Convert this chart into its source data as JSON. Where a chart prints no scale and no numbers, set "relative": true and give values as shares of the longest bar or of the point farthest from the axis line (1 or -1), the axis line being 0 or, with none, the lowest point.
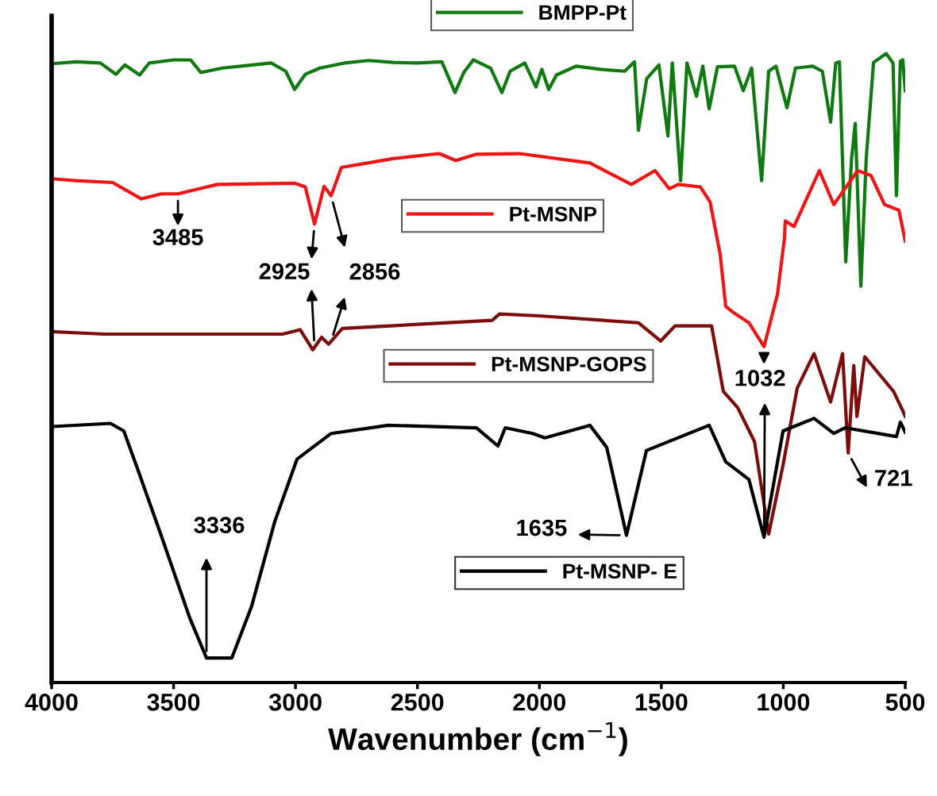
{
  "chart_data": {
    "type": "line",
    "relative": true,
    "xlabel": "Wavenumber (cm$^{−1}$)",
    "xlim": [
      4000,
      500
    ],
    "xticks": [
      4000,
      3500,
      3000,
      2500,
      2000,
      1500,
      1000,
      500
    ],
    "tick_labels": "x",
    "legend": "top",
    "marker": "none",
    "line_style": "solid",
    "grid": false,
    "series": [
      {
        "name": "BMPP-Pt",
        "color": "#0f7a0f",
        "x": [
          4000,
          3900,
          3800,
          3736,
          3700,
          3639,
          3600,
          3500,
          3430,
          3388,
          3300,
          3200,
          3100,
          3040,
          3004,
          2960,
          2900,
          2800,
          2700,
          2600,
          2500,
          2400,
          2346,
          2310,
          2271,
          2200,
          2154,
          2120,
          2060,
          2014,
          1990,
          1962,
          1930,
          1850,
          1750,
          1650,
          1610,
          1594,
          1560,
          1510,
          1473,
          1455,
          1421,
          1395,
          1356,
          1330,
          1304,
          1270,
          1200,
          1164,
          1130,
          1089,
          1060,
          1030,
          985,
          950,
          880,
          840,
          806,
          785,
          770,
          744,
          720,
          705,
          682,
          660,
          630,
          578,
          550,
          536,
          520,
          510,
          500
        ],
        "values": [
          0.984,
          0.987,
          0.985,
          0.967,
          0.982,
          0.966,
          0.985,
          0.99,
          0.99,
          0.97,
          0.977,
          0.981,
          0.985,
          0.972,
          0.943,
          0.967,
          0.977,
          0.985,
          0.989,
          0.986,
          0.985,
          0.987,
          0.938,
          0.97,
          0.99,
          0.977,
          0.938,
          0.972,
          0.985,
          0.947,
          0.975,
          0.943,
          0.966,
          0.98,
          0.975,
          0.972,
          0.987,
          0.878,
          0.96,
          0.982,
          0.869,
          0.985,
          0.798,
          0.985,
          0.932,
          0.98,
          0.912,
          0.979,
          0.98,
          0.941,
          0.977,
          0.798,
          0.972,
          0.98,
          0.914,
          0.977,
          0.98,
          0.972,
          0.891,
          0.985,
          0.987,
          0.669,
          0.833,
          0.889,
          0.63,
          0.833,
          0.986,
          1.0,
          0.985,
          0.774,
          0.988,
          0.99,
          0.941
        ]
      },
      {
        "name": "Pt-MSNP",
        "color": "#f01414",
        "x": [
          4000,
          3900,
          3750,
          3632,
          3550,
          3482,
          3320,
          3004,
          2960,
          2922,
          2883,
          2854,
          2812,
          2600,
          2411,
          2343,
          2258,
          2082,
          1793,
          1623,
          1526,
          1467,
          1431,
          1340,
          1300,
          1259,
          1236,
          1200,
          1141,
          1079,
          1024,
          995,
          992,
          956,
          852,
          793,
          695,
          640,
          585,
          526,
          500
        ],
        "values": [
          0.801,
          0.798,
          0.795,
          0.769,
          0.777,
          0.777,
          0.792,
          0.794,
          0.788,
          0.729,
          0.789,
          0.774,
          0.819,
          0.833,
          0.841,
          0.83,
          0.84,
          0.841,
          0.826,
          0.792,
          0.814,
          0.785,
          0.792,
          0.788,
          0.764,
          0.681,
          0.598,
          0.587,
          0.572,
          0.534,
          0.617,
          0.707,
          0.734,
          0.725,
          0.814,
          0.76,
          0.814,
          0.806,
          0.76,
          0.751,
          0.702
        ]
      },
      {
        "name": "Pt-MSNP-GOPS",
        "color": "#7d0c0c",
        "x": [
          4000,
          3785,
          3053,
          2981,
          2929,
          2893,
          2864,
          2808,
          2193,
          2164,
          2001,
          1594,
          1503,
          1444,
          1294,
          1246,
          1187,
          1118,
          1060,
          1001,
          943,
          874,
          806,
          757,
          734,
          711,
          698,
          666,
          548,
          510,
          500
        ],
        "values": [
          0.558,
          0.554,
          0.554,
          0.561,
          0.529,
          0.549,
          0.538,
          0.563,
          0.576,
          0.586,
          0.583,
          0.572,
          0.543,
          0.567,
          0.567,
          0.463,
          0.437,
          0.383,
          0.236,
          0.346,
          0.468,
          0.523,
          0.446,
          0.523,
          0.365,
          0.504,
          0.423,
          0.518,
          0.463,
          0.432,
          0.423
        ]
      },
      {
        "name": "Pt-MSNP- E",
        "color": "#000000",
        "x": [
          4000,
          3759,
          3704,
          3645,
          3551,
          3433,
          3365,
          3261,
          3180,
          3085,
          2994,
          2854,
          2620,
          2258,
          2170,
          2140,
          2027,
          1978,
          1793,
          1724,
          1643,
          1561,
          1304,
          1236,
          1141,
          1079,
          1001,
          874,
          793,
          747,
          536,
          520,
          500
        ],
        "values": [
          0.407,
          0.412,
          0.4,
          0.337,
          0.234,
          0.102,
          0.039,
          0.039,
          0.121,
          0.256,
          0.355,
          0.396,
          0.409,
          0.405,
          0.376,
          0.405,
          0.396,
          0.389,
          0.409,
          0.374,
          0.234,
          0.369,
          0.409,
          0.351,
          0.323,
          0.231,
          0.4,
          0.42,
          0.396,
          0.405,
          0.391,
          0.414,
          0.398
        ]
      }
    ],
    "annotations": [
      {
        "text": "3485",
        "x": 3482,
        "y": 0.777
      },
      {
        "text": "2925",
        "x": 2922,
        "y": 0.729
      },
      {
        "text": "2856",
        "x": 2854,
        "y": 0.774
      },
      "3336",
      {
        "text": "1635",
        "x": 1643,
        "y": 0.234
      },
      {
        "text": "1032",
        "x": 1079,
        "y": 0.534
      },
      {
        "text": "721",
        "x": 734,
        "y": 0.365
      }
    ]
  }
}
